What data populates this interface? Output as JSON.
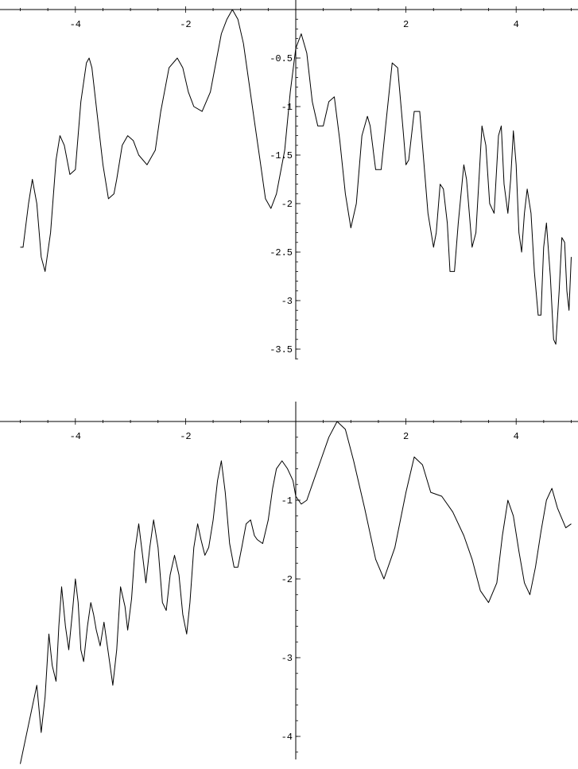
{
  "chart_data": [
    {
      "type": "line",
      "title": "",
      "xlabel": "",
      "ylabel": "",
      "xlim": [
        -5,
        5
      ],
      "ylim": [
        -3.6,
        0
      ],
      "x_ticks": [
        {
          "value": -4,
          "label": "-4"
        },
        {
          "value": -2,
          "label": "-2"
        },
        {
          "value": 2,
          "label": "2"
        },
        {
          "value": 4,
          "label": "4"
        }
      ],
      "y_ticks": [
        {
          "value": -0.5,
          "label": "-0.5"
        },
        {
          "value": -1,
          "label": "-1"
        },
        {
          "value": -1.5,
          "label": "-1.5"
        },
        {
          "value": -2,
          "label": "-2"
        },
        {
          "value": -2.5,
          "label": "-2.5"
        },
        {
          "value": -3,
          "label": "-3"
        },
        {
          "value": -3.5,
          "label": "-3.5"
        }
      ],
      "grid": false,
      "series": [
        {
          "x": [
            -5.0,
            -4.95,
            -4.85,
            -4.78,
            -4.7,
            -4.62,
            -4.55,
            -4.45,
            -4.35,
            -4.28,
            -4.2,
            -4.1,
            -4.0,
            -3.9,
            -3.8,
            -3.75,
            -3.7,
            -3.6,
            -3.5,
            -3.4,
            -3.3,
            -3.25,
            -3.15,
            -3.05,
            -2.95,
            -2.85,
            -2.7,
            -2.55,
            -2.45,
            -2.3,
            -2.15,
            -2.05,
            -1.95,
            -1.85,
            -1.7,
            -1.55,
            -1.45,
            -1.35,
            -1.25,
            -1.15,
            -1.05,
            -0.95,
            -0.85,
            -0.75,
            -0.65,
            -0.55,
            -0.45,
            -0.35,
            -0.2,
            -0.1,
            0.0,
            0.1,
            0.2,
            0.3,
            0.4,
            0.5,
            0.6,
            0.7,
            0.8,
            0.9,
            1.0,
            1.1,
            1.2,
            1.3,
            1.35,
            1.45,
            1.55,
            1.65,
            1.75,
            1.85,
            1.95,
            2.0,
            2.05,
            2.15,
            2.25,
            2.3,
            2.4,
            2.5,
            2.55,
            2.62,
            2.68,
            2.75,
            2.8,
            2.88,
            2.95,
            3.05,
            3.1,
            3.15,
            3.2,
            3.27,
            3.32,
            3.38,
            3.45,
            3.52,
            3.6,
            3.68,
            3.73,
            3.78,
            3.85,
            3.9,
            3.95,
            4.0,
            4.05,
            4.1,
            4.15,
            4.2,
            4.27,
            4.33,
            4.4,
            4.45,
            4.5,
            4.55,
            4.62,
            4.68,
            4.72,
            4.78,
            4.83,
            4.88,
            4.92,
            4.96,
            5.0
          ],
          "y": [
            -2.45,
            -2.45,
            -2.0,
            -1.75,
            -2.0,
            -2.55,
            -2.7,
            -2.3,
            -1.55,
            -1.3,
            -1.4,
            -1.7,
            -1.65,
            -0.95,
            -0.55,
            -0.5,
            -0.6,
            -1.1,
            -1.6,
            -1.95,
            -1.9,
            -1.75,
            -1.4,
            -1.3,
            -1.35,
            -1.5,
            -1.6,
            -1.45,
            -1.05,
            -0.6,
            -0.5,
            -0.6,
            -0.85,
            -1.0,
            -1.05,
            -0.85,
            -0.55,
            -0.25,
            -0.1,
            0.0,
            -0.1,
            -0.35,
            -0.75,
            -1.15,
            -1.55,
            -1.95,
            -2.05,
            -1.9,
            -1.45,
            -0.85,
            -0.4,
            -0.25,
            -0.45,
            -0.95,
            -1.2,
            -1.2,
            -0.95,
            -0.9,
            -1.35,
            -1.9,
            -2.25,
            -2.0,
            -1.3,
            -1.1,
            -1.2,
            -1.65,
            -1.65,
            -1.1,
            -0.55,
            -0.6,
            -1.25,
            -1.6,
            -1.55,
            -1.05,
            -1.05,
            -1.4,
            -2.1,
            -2.45,
            -2.3,
            -1.8,
            -1.85,
            -2.2,
            -2.7,
            -2.7,
            -2.2,
            -1.6,
            -1.75,
            -2.1,
            -2.45,
            -2.3,
            -1.8,
            -1.2,
            -1.4,
            -2.0,
            -2.1,
            -1.3,
            -1.2,
            -1.8,
            -2.1,
            -1.75,
            -1.25,
            -1.6,
            -2.3,
            -2.5,
            -2.1,
            -1.85,
            -2.1,
            -2.7,
            -3.15,
            -3.15,
            -2.45,
            -2.2,
            -2.75,
            -3.4,
            -3.45,
            -2.9,
            -2.35,
            -2.4,
            -2.9,
            -3.1,
            -2.55
          ]
        }
      ]
    },
    {
      "type": "line",
      "title": "",
      "xlabel": "",
      "ylabel": "",
      "xlim": [
        -5,
        5
      ],
      "ylim": [
        -4.4,
        0.1
      ],
      "x_ticks": [
        {
          "value": -4,
          "label": "-4"
        },
        {
          "value": -2,
          "label": "-2"
        },
        {
          "value": 2,
          "label": "2"
        },
        {
          "value": 4,
          "label": "4"
        }
      ],
      "y_ticks": [
        {
          "value": -1,
          "label": "-1"
        },
        {
          "value": -2,
          "label": "-2"
        },
        {
          "value": -3,
          "label": "-3"
        },
        {
          "value": -4,
          "label": "-4"
        }
      ],
      "grid": false,
      "series": [
        {
          "x": [
            -5.0,
            -4.85,
            -4.7,
            -4.62,
            -4.55,
            -4.48,
            -4.42,
            -4.35,
            -4.3,
            -4.25,
            -4.18,
            -4.12,
            -4.05,
            -4.0,
            -3.95,
            -3.9,
            -3.85,
            -3.78,
            -3.72,
            -3.67,
            -3.62,
            -3.55,
            -3.48,
            -3.4,
            -3.32,
            -3.25,
            -3.18,
            -3.1,
            -3.05,
            -2.98,
            -2.92,
            -2.85,
            -2.78,
            -2.72,
            -2.65,
            -2.58,
            -2.5,
            -2.42,
            -2.35,
            -2.28,
            -2.2,
            -2.12,
            -2.05,
            -1.98,
            -1.92,
            -1.85,
            -1.78,
            -1.72,
            -1.65,
            -1.58,
            -1.5,
            -1.42,
            -1.35,
            -1.28,
            -1.2,
            -1.12,
            -1.05,
            -0.98,
            -0.9,
            -0.82,
            -0.75,
            -0.7,
            -0.6,
            -0.5,
            -0.42,
            -0.35,
            -0.25,
            -0.15,
            -0.05,
            0.0,
            0.1,
            0.2,
            0.3,
            0.45,
            0.6,
            0.75,
            0.9,
            1.05,
            1.25,
            1.45,
            1.6,
            1.8,
            2.0,
            2.15,
            2.3,
            2.45,
            2.65,
            2.85,
            3.05,
            3.2,
            3.35,
            3.5,
            3.65,
            3.75,
            3.85,
            3.95,
            4.05,
            4.15,
            4.25,
            4.35,
            4.45,
            4.55,
            4.65,
            4.75,
            4.9,
            5.0
          ],
          "y": [
            -4.35,
            -3.85,
            -3.35,
            -3.95,
            -3.5,
            -2.7,
            -3.1,
            -3.3,
            -2.6,
            -2.1,
            -2.6,
            -2.9,
            -2.4,
            -2.0,
            -2.3,
            -2.9,
            -3.05,
            -2.6,
            -2.3,
            -2.45,
            -2.65,
            -2.85,
            -2.55,
            -2.95,
            -3.35,
            -2.9,
            -2.1,
            -2.35,
            -2.65,
            -2.25,
            -1.65,
            -1.3,
            -1.7,
            -2.05,
            -1.6,
            -1.25,
            -1.6,
            -2.3,
            -2.4,
            -1.95,
            -1.7,
            -1.95,
            -2.45,
            -2.7,
            -2.3,
            -1.6,
            -1.3,
            -1.5,
            -1.7,
            -1.6,
            -1.25,
            -0.75,
            -0.5,
            -0.9,
            -1.55,
            -1.85,
            -1.85,
            -1.6,
            -1.3,
            -1.25,
            -1.45,
            -1.5,
            -1.55,
            -1.25,
            -0.85,
            -0.6,
            -0.5,
            -0.6,
            -0.75,
            -0.95,
            -1.05,
            -1.0,
            -0.8,
            -0.5,
            -0.2,
            0.0,
            -0.1,
            -0.5,
            -1.1,
            -1.75,
            -2.0,
            -1.6,
            -0.9,
            -0.45,
            -0.55,
            -0.9,
            -0.95,
            -1.15,
            -1.45,
            -1.75,
            -2.15,
            -2.3,
            -2.05,
            -1.45,
            -1.0,
            -1.2,
            -1.65,
            -2.05,
            -2.2,
            -1.85,
            -1.4,
            -1.0,
            -0.85,
            -1.1,
            -1.35,
            -1.3
          ]
        }
      ]
    }
  ]
}
